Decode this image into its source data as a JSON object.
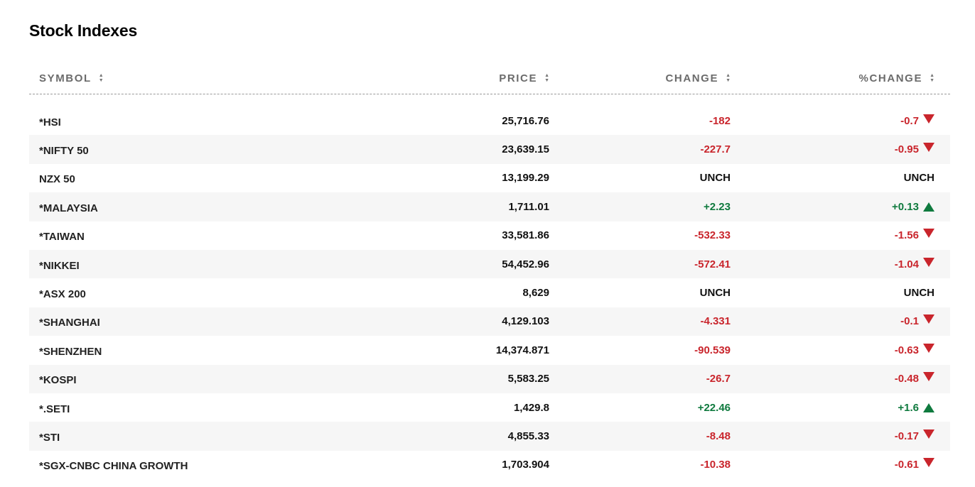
{
  "title": "Stock Indexes",
  "columns": {
    "symbol": "SYMBOL",
    "price": "PRICE",
    "change": "CHANGE",
    "pct": "%CHANGE"
  },
  "sort_icon": "sort-updown-icon",
  "colors": {
    "down": "#c9252c",
    "up": "#0f7a3e",
    "flat": "#111111"
  },
  "rows": [
    {
      "symbol": "*HSI",
      "price": "25,716.76",
      "change": "-182",
      "pct": "-0.7",
      "dir": "down"
    },
    {
      "symbol": "*NIFTY 50",
      "price": "23,639.15",
      "change": "-227.7",
      "pct": "-0.95",
      "dir": "down"
    },
    {
      "symbol": "NZX 50",
      "price": "13,199.29",
      "change": "UNCH",
      "pct": "UNCH",
      "dir": "flat"
    },
    {
      "symbol": "*MALAYSIA",
      "price": "1,711.01",
      "change": "+2.23",
      "pct": "+0.13",
      "dir": "up"
    },
    {
      "symbol": "*TAIWAN",
      "price": "33,581.86",
      "change": "-532.33",
      "pct": "-1.56",
      "dir": "down"
    },
    {
      "symbol": "*NIKKEI",
      "price": "54,452.96",
      "change": "-572.41",
      "pct": "-1.04",
      "dir": "down"
    },
    {
      "symbol": "*ASX 200",
      "price": "8,629",
      "change": "UNCH",
      "pct": "UNCH",
      "dir": "flat"
    },
    {
      "symbol": "*SHANGHAI",
      "price": "4,129.103",
      "change": "-4.331",
      "pct": "-0.1",
      "dir": "down"
    },
    {
      "symbol": "*SHENZHEN",
      "price": "14,374.871",
      "change": "-90.539",
      "pct": "-0.63",
      "dir": "down"
    },
    {
      "symbol": "*KOSPI",
      "price": "5,583.25",
      "change": "-26.7",
      "pct": "-0.48",
      "dir": "down"
    },
    {
      "symbol": "*.SETI",
      "price": "1,429.8",
      "change": "+22.46",
      "pct": "+1.6",
      "dir": "up"
    },
    {
      "symbol": "*STI",
      "price": "4,855.33",
      "change": "-8.48",
      "pct": "-0.17",
      "dir": "down"
    },
    {
      "symbol": "*SGX-CNBC CHINA GROWTH",
      "price": "1,703.904",
      "change": "-10.38",
      "pct": "-0.61",
      "dir": "down"
    }
  ]
}
